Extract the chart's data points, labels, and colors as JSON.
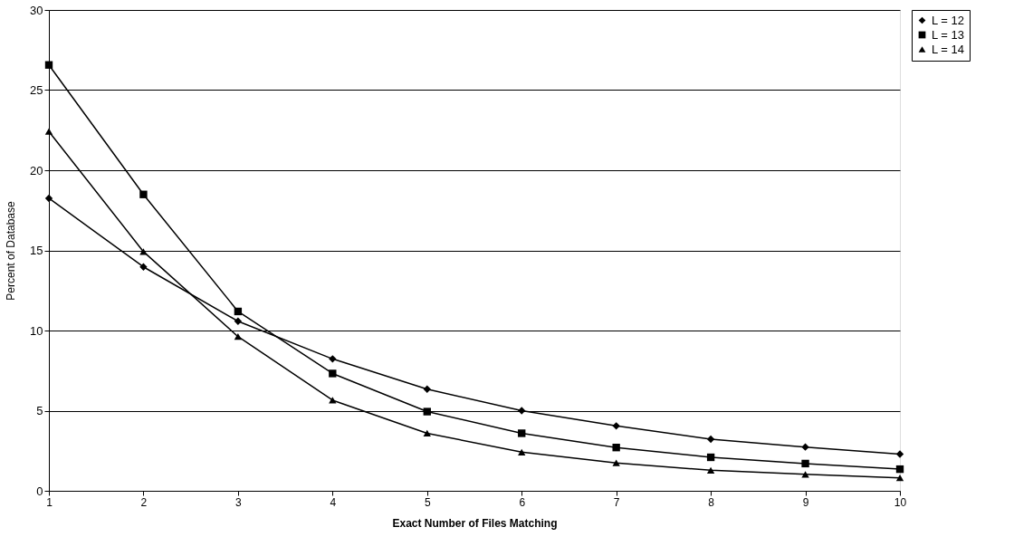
{
  "chart_data": {
    "type": "line",
    "xlabel": "Exact Number of Files Matching",
    "ylabel": "Percent of Database",
    "x": [
      1,
      2,
      3,
      4,
      5,
      6,
      7,
      8,
      9,
      10
    ],
    "series": [
      {
        "name": "L = 12",
        "color": "#000000",
        "marker": "diamond",
        "values": [
          18.25,
          13.97,
          10.58,
          8.23,
          6.34,
          5.0,
          4.05,
          3.22,
          2.73,
          2.29
        ]
      },
      {
        "name": "L = 13",
        "color": "#000000",
        "marker": "square",
        "values": [
          26.57,
          18.49,
          11.19,
          7.32,
          4.94,
          3.59,
          2.7,
          2.09,
          1.7,
          1.35
        ]
      },
      {
        "name": "L = 14",
        "color": "#000000",
        "marker": "triangle",
        "values": [
          22.42,
          14.92,
          9.62,
          5.65,
          3.59,
          2.41,
          1.74,
          1.28,
          1.03,
          0.81
        ]
      }
    ],
    "xlim": [
      1,
      10
    ],
    "xticks": [
      1,
      2,
      3,
      4,
      5,
      6,
      7,
      8,
      9,
      10
    ],
    "ylim": [
      0,
      30
    ],
    "yticks": [
      0,
      5,
      10,
      15,
      20,
      25,
      30
    ],
    "grid": "y",
    "legend": "right",
    "line_style": "solid"
  }
}
